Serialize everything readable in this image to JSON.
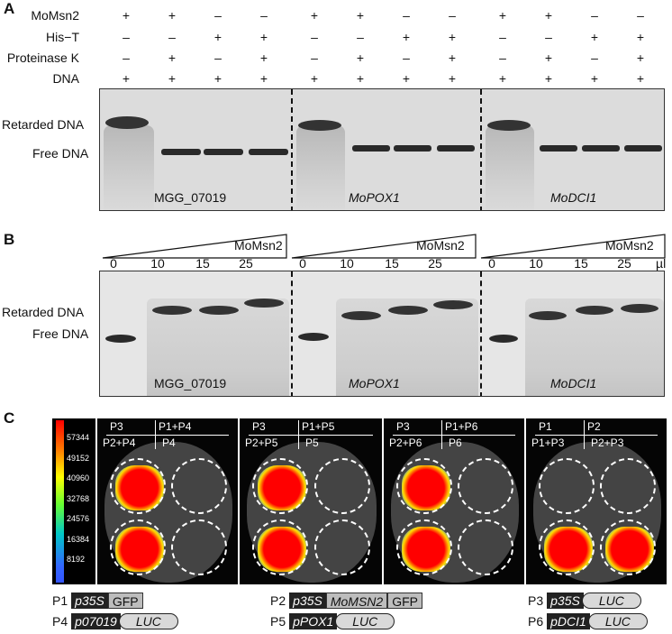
{
  "panels": {
    "a": "A",
    "b": "B",
    "c": "C"
  },
  "panel_a": {
    "row_labels": [
      "MoMsn2",
      "His−T",
      "Proteinase K",
      "DNA"
    ],
    "signs": [
      [
        "+",
        "+",
        "–",
        "–",
        "+",
        "+",
        "–",
        "–",
        "+",
        "+",
        "–",
        "–"
      ],
      [
        "–",
        "–",
        "+",
        "+",
        "–",
        "–",
        "+",
        "+",
        "–",
        "–",
        "+",
        "+"
      ],
      [
        "–",
        "+",
        "–",
        "+",
        "–",
        "+",
        "–",
        "+",
        "–",
        "+",
        "–",
        "+"
      ],
      [
        "+",
        "+",
        "+",
        "+",
        "+",
        "+",
        "+",
        "+",
        "+",
        "+",
        "+",
        "+"
      ]
    ],
    "band_labels": {
      "retarded": "Retarded DNA",
      "free": "Free DNA"
    },
    "gene_labels": [
      "MGG_07019",
      "MoPOX1",
      "MoDCI1"
    ]
  },
  "panel_b": {
    "wedge_label": "MoMsn2",
    "concentrations": [
      "0",
      "10",
      "15",
      "25"
    ],
    "unit": "µl",
    "band_labels": {
      "retarded": "Retarded DNA",
      "free": "Free DNA"
    },
    "gene_labels": [
      "MGG_07019",
      "MoPOX1",
      "MoDCI1"
    ]
  },
  "panel_c": {
    "scale_ticks": [
      "57344",
      "49152",
      "40960",
      "32768",
      "24576",
      "16384",
      "8192"
    ],
    "leaves": [
      {
        "top_left": "P3",
        "top_right": "P1+P4",
        "bottom_left": "P2+P4",
        "bottom_right": "P4"
      },
      {
        "top_left": "P3",
        "top_right": "P1+P5",
        "bottom_left": "P2+P5",
        "bottom_right": "P5"
      },
      {
        "top_left": "P3",
        "top_right": "P1+P6",
        "bottom_left": "P2+P6",
        "bottom_right": "P6"
      },
      {
        "top_left": "P1",
        "top_right": "P2",
        "bottom_left": "P1+P3",
        "bottom_right": "P2+P3"
      }
    ],
    "constructs": [
      {
        "id": "P1",
        "promoter": "p35S",
        "parts": [
          "GFP"
        ]
      },
      {
        "id": "P2",
        "promoter": "p35S",
        "parts": [
          "MoMSN2",
          "GFP"
        ]
      },
      {
        "id": "P3",
        "promoter": "p35S",
        "reporter": "LUC"
      },
      {
        "id": "P4",
        "promoter": "p07019",
        "reporter": "LUC"
      },
      {
        "id": "P5",
        "promoter": "pPOX1",
        "reporter": "LUC"
      },
      {
        "id": "P6",
        "promoter": "pDCI1",
        "reporter": "LUC"
      }
    ]
  }
}
